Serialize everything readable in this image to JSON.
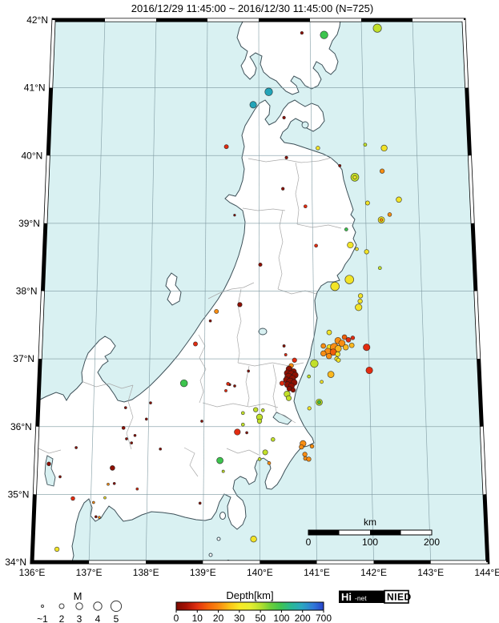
{
  "title": "2016/12/29 11:45:00 ~ 2016/12/30 11:45:00 (N=725)",
  "map": {
    "lat_labels": [
      {
        "label": "42°N",
        "lat": 42
      },
      {
        "label": "41°N",
        "lat": 41
      },
      {
        "label": "40°N",
        "lat": 40
      },
      {
        "label": "39°N",
        "lat": 39
      },
      {
        "label": "38°N",
        "lat": 38
      },
      {
        "label": "37°N",
        "lat": 37
      },
      {
        "label": "36°N",
        "lat": 36
      },
      {
        "label": "35°N",
        "lat": 35
      },
      {
        "label": "34°N",
        "lat": 34
      }
    ],
    "lon_labels": [
      {
        "label": "136°E",
        "lon": 136
      },
      {
        "label": "137°E",
        "lon": 137
      },
      {
        "label": "138°E",
        "lon": 138
      },
      {
        "label": "139°E",
        "lon": 139
      },
      {
        "label": "140°E",
        "lon": 140
      },
      {
        "label": "141°E",
        "lon": 141
      },
      {
        "label": "142°E",
        "lon": 142
      },
      {
        "label": "143°E",
        "lon": 143
      },
      {
        "label": "144°E",
        "lon": 144
      }
    ],
    "sea_color": "#d9f1f2",
    "land_color": "#ffffff"
  },
  "scalebar": {
    "label": "km",
    "ticks": [
      "0",
      "100",
      "200"
    ]
  },
  "legend": {
    "magnitude": {
      "label": "M",
      "items": [
        {
          "label": "~1",
          "r": 1.5
        },
        {
          "label": "2",
          "r": 3
        },
        {
          "label": "3",
          "r": 4.2
        },
        {
          "label": "4",
          "r": 5.2
        },
        {
          "label": "5",
          "r": 6.6
        }
      ]
    },
    "depth": {
      "title": "Depth[km]",
      "ticks": [
        "0",
        "10",
        "20",
        "30",
        "50",
        "100",
        "200",
        "700"
      ],
      "gradient_stops": [
        [
          0,
          "#7c0a02"
        ],
        [
          0.07,
          "#a81205"
        ],
        [
          0.14,
          "#e03010"
        ],
        [
          0.21,
          "#f45f0a"
        ],
        [
          0.29,
          "#fa8c10"
        ],
        [
          0.36,
          "#fcc215"
        ],
        [
          0.43,
          "#f8ea25"
        ],
        [
          0.5,
          "#e8ef30"
        ],
        [
          0.57,
          "#b9e12e"
        ],
        [
          0.64,
          "#6ccf3a"
        ],
        [
          0.71,
          "#3ec452"
        ],
        [
          0.78,
          "#28b894"
        ],
        [
          0.85,
          "#2aa8c0"
        ],
        [
          0.93,
          "#2f7ad8"
        ],
        [
          1,
          "#2743cc"
        ]
      ]
    }
  },
  "logo": {
    "hi": "Hi",
    "net": "-net",
    "nied": "NIED"
  },
  "chart_data": {
    "type": "scatter",
    "title": "Hi-net hypocenter map, 2016/12/29 11:45:00 ~ 2016/12/30 11:45:00, N=725 events",
    "x_axis": {
      "label": "Longitude",
      "range": [
        136,
        144
      ]
    },
    "y_axis": {
      "label": "Latitude",
      "range": [
        34,
        42
      ]
    },
    "size_encoding": "magnitude M ~1 to 5",
    "color_encoding": "hypocenter depth in km (0 dark red to 700 blue)",
    "depth_colors": {
      "c0": "#8e1002",
      "c10": "#e22c10",
      "c15": "#f05e0a",
      "c20": "#f98e12",
      "c25": "#fbb81e",
      "c30": "#f2e428",
      "c40": "#c2e02a",
      "c50": "#3dc44e",
      "c100": "#22a4b8"
    },
    "points": [
      [
        140.84,
        41.81,
        "c0",
        1.8
      ],
      [
        141.27,
        41.78,
        "c50",
        4.8
      ],
      [
        142.31,
        41.88,
        "c40",
        5.2
      ],
      [
        140.19,
        40.94,
        "c100",
        4.8
      ],
      [
        139.89,
        40.75,
        "c100",
        4.2
      ],
      [
        140.48,
        40.56,
        "c0",
        1.8
      ],
      [
        139.38,
        40.13,
        "c10",
        2.6
      ],
      [
        140.52,
        39.97,
        "c0",
        1.8
      ],
      [
        141.12,
        40.11,
        "c30",
        2.4
      ],
      [
        142.02,
        40.16,
        "c40",
        2.0
      ],
      [
        142.38,
        40.11,
        "c30",
        3.8
      ],
      [
        142.33,
        39.77,
        "c20",
        2.8
      ],
      [
        141.81,
        39.68,
        "c40",
        5.0
      ],
      [
        141.81,
        39.68,
        "c30",
        2.2
      ],
      [
        141.53,
        39.85,
        "c0",
        1.6
      ],
      [
        140.45,
        39.51,
        "c0",
        1.8
      ],
      [
        139.54,
        39.12,
        "c0",
        1.3
      ],
      [
        140.87,
        39.25,
        "c10",
        2.0
      ],
      [
        142.04,
        39.3,
        "c30",
        2.6
      ],
      [
        142.63,
        39.35,
        "c30",
        3.4
      ],
      [
        142.29,
        39.05,
        "c30",
        4.0
      ],
      [
        142.29,
        39.05,
        "c20",
        1.8
      ],
      [
        142.45,
        39.13,
        "c20",
        2.4
      ],
      [
        141.63,
        38.91,
        "c50",
        2.0
      ],
      [
        141.06,
        38.67,
        "c10",
        2.0
      ],
      [
        141.7,
        38.68,
        "c30",
        3.8
      ],
      [
        141.82,
        38.62,
        "c30",
        2.0
      ],
      [
        142.0,
        38.58,
        "c30",
        2.8
      ],
      [
        140.02,
        38.39,
        "c0",
        2.2
      ],
      [
        142.24,
        38.34,
        "c40",
        2.0
      ],
      [
        141.67,
        38.17,
        "c30",
        5.4
      ],
      [
        141.4,
        38.07,
        "c30",
        5.4
      ],
      [
        139.64,
        37.8,
        "c0",
        2.8
      ],
      [
        141.87,
        37.93,
        "c30",
        2.8
      ],
      [
        141.86,
        37.85,
        "c30",
        2.8
      ],
      [
        141.83,
        37.76,
        "c30",
        4.2
      ],
      [
        139.21,
        37.7,
        "c20",
        2.6
      ],
      [
        139.1,
        37.56,
        "c0",
        1.5
      ],
      [
        138.83,
        37.22,
        "c10",
        2.6
      ],
      [
        141.28,
        37.39,
        "c30",
        3.0
      ],
      [
        141.56,
        37.32,
        "c15",
        3.0
      ],
      [
        141.63,
        37.28,
        "c10",
        3.0
      ],
      [
        141.71,
        37.31,
        "c10",
        2.4
      ],
      [
        141.44,
        37.27,
        "c20",
        4.0
      ],
      [
        141.51,
        37.23,
        "c20",
        4.0
      ],
      [
        141.17,
        37.19,
        "c20",
        3.0
      ],
      [
        141.28,
        37.17,
        "c30",
        3.4
      ],
      [
        141.37,
        37.17,
        "c20",
        5.0
      ],
      [
        141.44,
        37.15,
        "c25",
        4.0
      ],
      [
        141.58,
        37.17,
        "c25",
        3.4
      ],
      [
        141.69,
        37.2,
        "c25",
        3.0
      ],
      [
        141.25,
        37.11,
        "c20",
        4.0
      ],
      [
        141.35,
        37.1,
        "c15",
        4.0
      ],
      [
        141.17,
        37.08,
        "c20",
        3.4
      ],
      [
        141.43,
        37.07,
        "c30",
        3.0
      ],
      [
        141.27,
        37.04,
        "c20",
        3.4
      ],
      [
        141.41,
        37.0,
        "c30",
        2.6
      ],
      [
        141.44,
        36.98,
        "c30",
        2.6
      ],
      [
        141.96,
        37.17,
        "c10",
        4.2
      ],
      [
        142.0,
        36.83,
        "c10",
        4.2
      ],
      [
        141.0,
        36.93,
        "c40",
        4.8
      ],
      [
        141.3,
        36.77,
        "c25",
        4.0
      ],
      [
        140.64,
        36.98,
        "c10",
        2.8
      ],
      [
        140.48,
        37.06,
        "c10",
        1.6
      ],
      [
        140.58,
        36.9,
        "c20",
        2.8
      ],
      [
        140.45,
        37.19,
        "c0",
        1.6
      ],
      [
        140.54,
        36.85,
        "c0",
        3.8
      ],
      [
        140.62,
        36.81,
        "c0",
        3.8
      ],
      [
        140.51,
        36.79,
        "c0",
        4.0
      ],
      [
        140.58,
        36.77,
        "c0",
        4.8
      ],
      [
        140.65,
        36.76,
        "c0",
        3.8
      ],
      [
        140.53,
        36.73,
        "c0",
        4.8
      ],
      [
        140.6,
        36.71,
        "c0",
        4.0
      ],
      [
        140.49,
        36.69,
        "c0",
        3.8
      ],
      [
        140.56,
        36.66,
        "c0",
        4.8
      ],
      [
        140.63,
        36.65,
        "c0",
        3.8
      ],
      [
        140.51,
        36.62,
        "c0",
        3.8
      ],
      [
        140.58,
        36.6,
        "c0",
        3.8
      ],
      [
        140.54,
        36.56,
        "c0",
        3.0
      ],
      [
        140.61,
        36.54,
        "c0",
        2.8
      ],
      [
        140.41,
        36.64,
        "c10",
        2.8
      ],
      [
        139.8,
        36.82,
        "c0",
        1.5
      ],
      [
        139.55,
        36.6,
        "c0",
        1.5
      ],
      [
        139.46,
        36.62,
        "c0",
        1.5
      ],
      [
        139.43,
        36.63,
        "c10",
        2.0
      ],
      [
        139.39,
        36.53,
        "c10",
        1.6
      ],
      [
        138.63,
        36.64,
        "c50",
        4.4
      ],
      [
        141.13,
        36.66,
        "c30",
        2.0
      ],
      [
        140.9,
        36.74,
        "c40",
        2.0
      ],
      [
        140.5,
        36.48,
        "c40",
        3.8
      ],
      [
        140.53,
        36.42,
        "c40",
        3.2
      ],
      [
        141.08,
        36.36,
        "c40",
        4.0
      ],
      [
        141.08,
        36.36,
        "c50",
        2.0
      ],
      [
        140.9,
        36.27,
        "c30",
        2.2
      ],
      [
        139.93,
        36.25,
        "c40",
        2.8
      ],
      [
        140.06,
        36.24,
        "c40",
        2.0
      ],
      [
        139.7,
        36.2,
        "c40",
        2.0
      ],
      [
        140.0,
        36.14,
        "c40",
        3.8
      ],
      [
        140.0,
        36.08,
        "c40",
        2.8
      ],
      [
        139.7,
        36.03,
        "c40",
        2.0
      ],
      [
        139.6,
        35.92,
        "c10",
        3.8
      ],
      [
        139.77,
        35.91,
        "c0",
        1.5
      ],
      [
        140.24,
        35.81,
        "c40",
        2.4
      ],
      [
        140.78,
        35.75,
        "c20",
        3.8
      ],
      [
        140.75,
        35.7,
        "c20",
        2.8
      ],
      [
        140.94,
        35.71,
        "c20",
        2.4
      ],
      [
        140.1,
        35.62,
        "c40",
        3.2
      ],
      [
        140.0,
        35.52,
        "c40",
        2.0
      ],
      [
        140.17,
        35.46,
        "c20",
        2.0
      ],
      [
        140.81,
        35.59,
        "c20",
        2.8
      ],
      [
        140.82,
        35.53,
        "c20",
        2.4
      ],
      [
        140.88,
        35.52,
        "c20",
        2.8
      ],
      [
        139.29,
        35.5,
        "c50",
        4.0
      ],
      [
        139.35,
        35.34,
        "c40",
        1.6
      ],
      [
        138.94,
        34.87,
        "c0",
        1.5
      ],
      [
        139.89,
        34.34,
        "c30",
        3.8
      ],
      [
        136.43,
        34.19,
        "c30",
        2.8
      ],
      [
        136.23,
        35.45,
        "c0",
        2.4
      ],
      [
        136.44,
        35.26,
        "c0",
        1.5
      ],
      [
        137.37,
        35.39,
        "c0",
        3.0
      ],
      [
        137.3,
        35.15,
        "c20",
        1.5
      ],
      [
        137.41,
        35.16,
        "c0",
        1.5
      ],
      [
        137.82,
        35.08,
        "c10",
        1.5
      ],
      [
        136.68,
        34.94,
        "c10",
        2.4
      ],
      [
        137.05,
        34.88,
        "c20",
        1.5
      ],
      [
        137.25,
        34.95,
        "c30",
        1.5
      ],
      [
        137.1,
        34.67,
        "c0",
        1.5
      ],
      [
        137.16,
        34.66,
        "c20",
        1.5
      ],
      [
        138.03,
        36.35,
        "c0",
        1.5
      ],
      [
        137.58,
        36.28,
        "c0",
        1.5
      ],
      [
        137.96,
        36.11,
        "c0",
        1.5
      ],
      [
        138.96,
        36.08,
        "c0",
        1.5
      ],
      [
        137.55,
        35.98,
        "c0",
        2.0
      ],
      [
        137.76,
        35.87,
        "c0",
        1.5
      ],
      [
        137.61,
        35.82,
        "c0",
        1.5
      ],
      [
        137.7,
        35.76,
        "c0",
        1.5
      ],
      [
        136.71,
        35.69,
        "c0",
        1.5
      ],
      [
        138.22,
        35.67,
        "c0",
        1.5
      ]
    ]
  }
}
